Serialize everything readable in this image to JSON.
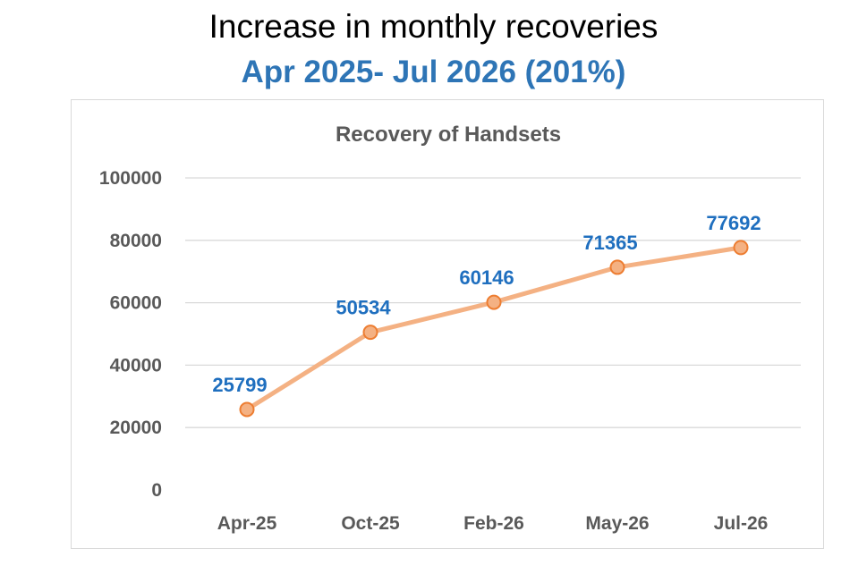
{
  "header": {
    "title": "Increase in monthly recoveries",
    "subtitle": "Apr 2025- Jul 2026 (201%)"
  },
  "colors": {
    "subtitle": "#2E75B6",
    "series_line": "#F4B183",
    "marker_fill": "#F4B183",
    "marker_stroke": "#ED7D31",
    "data_label": "#1F6FBF",
    "gridline": "#d9d9d9",
    "axis_text": "#595959"
  },
  "chart_data": {
    "type": "line",
    "title": "Recovery of Handsets",
    "categories": [
      "Apr-25",
      "Oct-25",
      "Feb-26",
      "May-26",
      "Jul-26"
    ],
    "series": [
      {
        "values": [
          25799,
          50534,
          60146,
          71365,
          77692
        ]
      }
    ],
    "data_labels": [
      "25799",
      "50534",
      "60146",
      "71365",
      "77692"
    ],
    "y_ticks": [
      "0",
      "20000",
      "40000",
      "60000",
      "80000",
      "100000"
    ],
    "ylim": [
      0,
      100000
    ],
    "grid": true,
    "legend": "none",
    "xlabel": "",
    "ylabel": ""
  }
}
